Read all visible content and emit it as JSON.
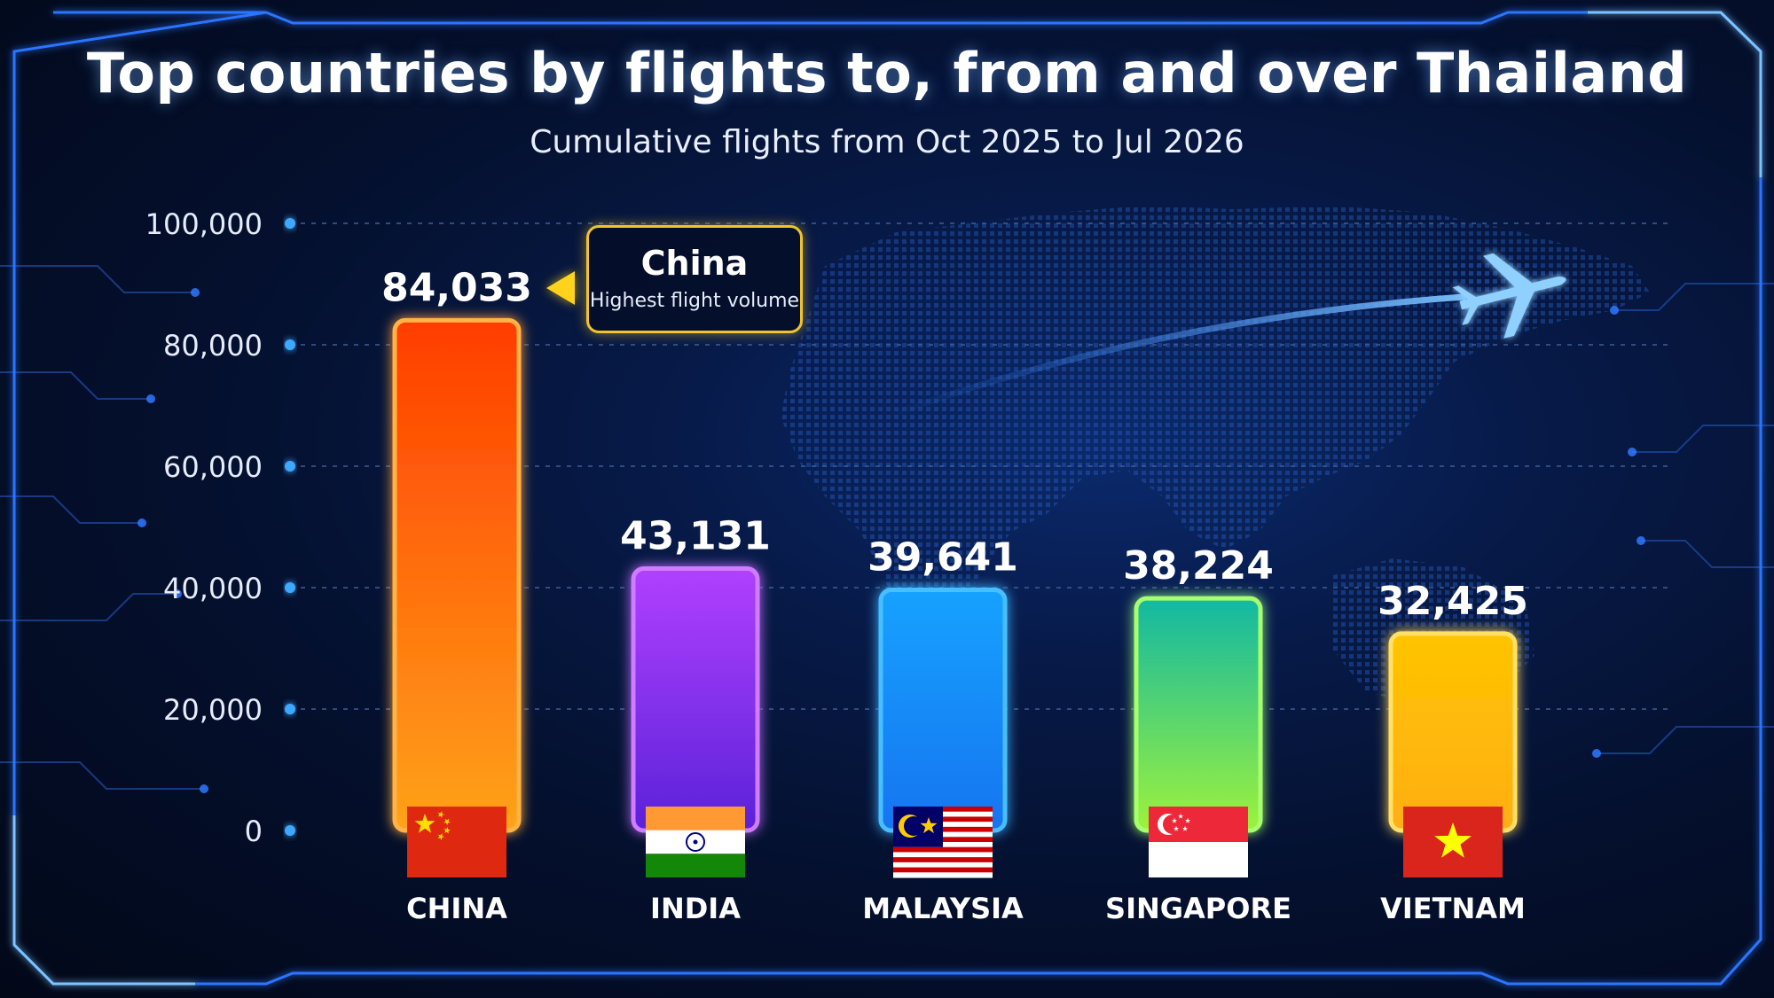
{
  "colors": {
    "axis": "#3ea8ff",
    "grid": "#3b5a92",
    "tick_text": "#e6ecfa",
    "value_text": "#ffffff",
    "callout_border": "#f2c42a"
  },
  "chart_data": {
    "type": "bar",
    "title": "Top countries by flights to, from and over Thailand",
    "subtitle": "Cumulative flights from Oct 2025 to Jul 2026",
    "xlabel": "",
    "ylabel": "",
    "ylim": [
      0,
      100000
    ],
    "yticks": [
      0,
      20000,
      40000,
      60000,
      80000,
      100000
    ],
    "ytick_labels": [
      "0",
      "20,000",
      "40,000",
      "60,000",
      "80,000",
      "100,000"
    ],
    "grid": true,
    "legend": "none",
    "categories": [
      "CHINA",
      "INDIA",
      "MALAYSIA",
      "SINGAPORE",
      "VIETNAM"
    ],
    "values": [
      84033,
      43131,
      39641,
      38224,
      32425
    ],
    "value_labels": [
      "84,033",
      "43,131",
      "39,641",
      "38,224",
      "32,425"
    ],
    "bar_gradients": [
      [
        "#ff3d00",
        "#ffa31a"
      ],
      [
        "#b040ff",
        "#5a22d8"
      ],
      [
        "#17a2ff",
        "#1674f0"
      ],
      [
        "#12b8a2",
        "#9ef23c"
      ],
      [
        "#ffc400",
        "#ffae14"
      ]
    ],
    "bar_glows": [
      "#ffb347",
      "#d07bff",
      "#47bfff",
      "#a6ff6e",
      "#ffe066"
    ],
    "flags": [
      "china-flag",
      "india-flag",
      "malaysia-flag",
      "singapore-flag",
      "vietnam-flag"
    ],
    "annotation": {
      "target": "CHINA",
      "title": "China",
      "text": "Highest flight volume"
    }
  }
}
